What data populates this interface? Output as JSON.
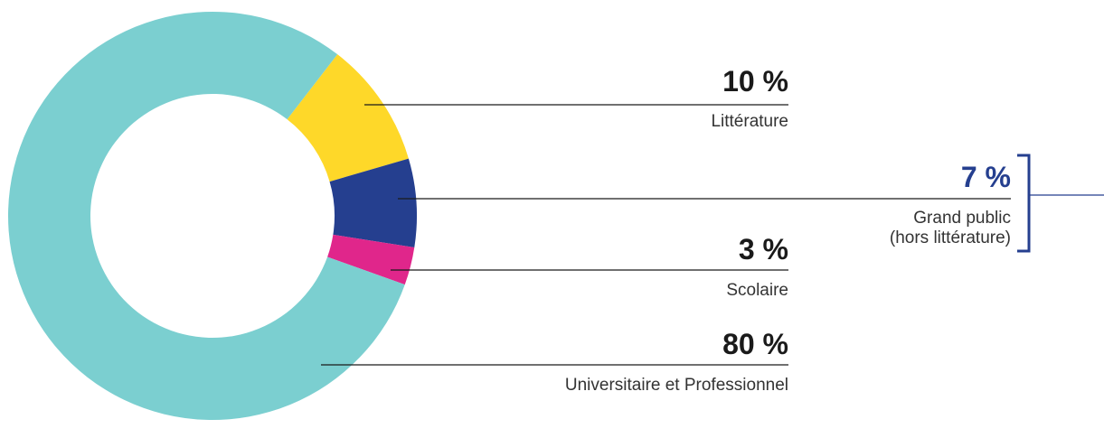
{
  "chart_data": {
    "type": "donut",
    "categories": [
      "Littérature",
      "Grand public (hors littérature)",
      "Scolaire",
      "Universitaire et Professionnel"
    ],
    "values": [
      10,
      7,
      3,
      80
    ],
    "value_labels": [
      "10 %",
      "7 %",
      "3 %",
      "80 %"
    ],
    "colors": [
      "#fed829",
      "#253f8f",
      "#e0268b",
      "#7bcfd0"
    ]
  }
}
